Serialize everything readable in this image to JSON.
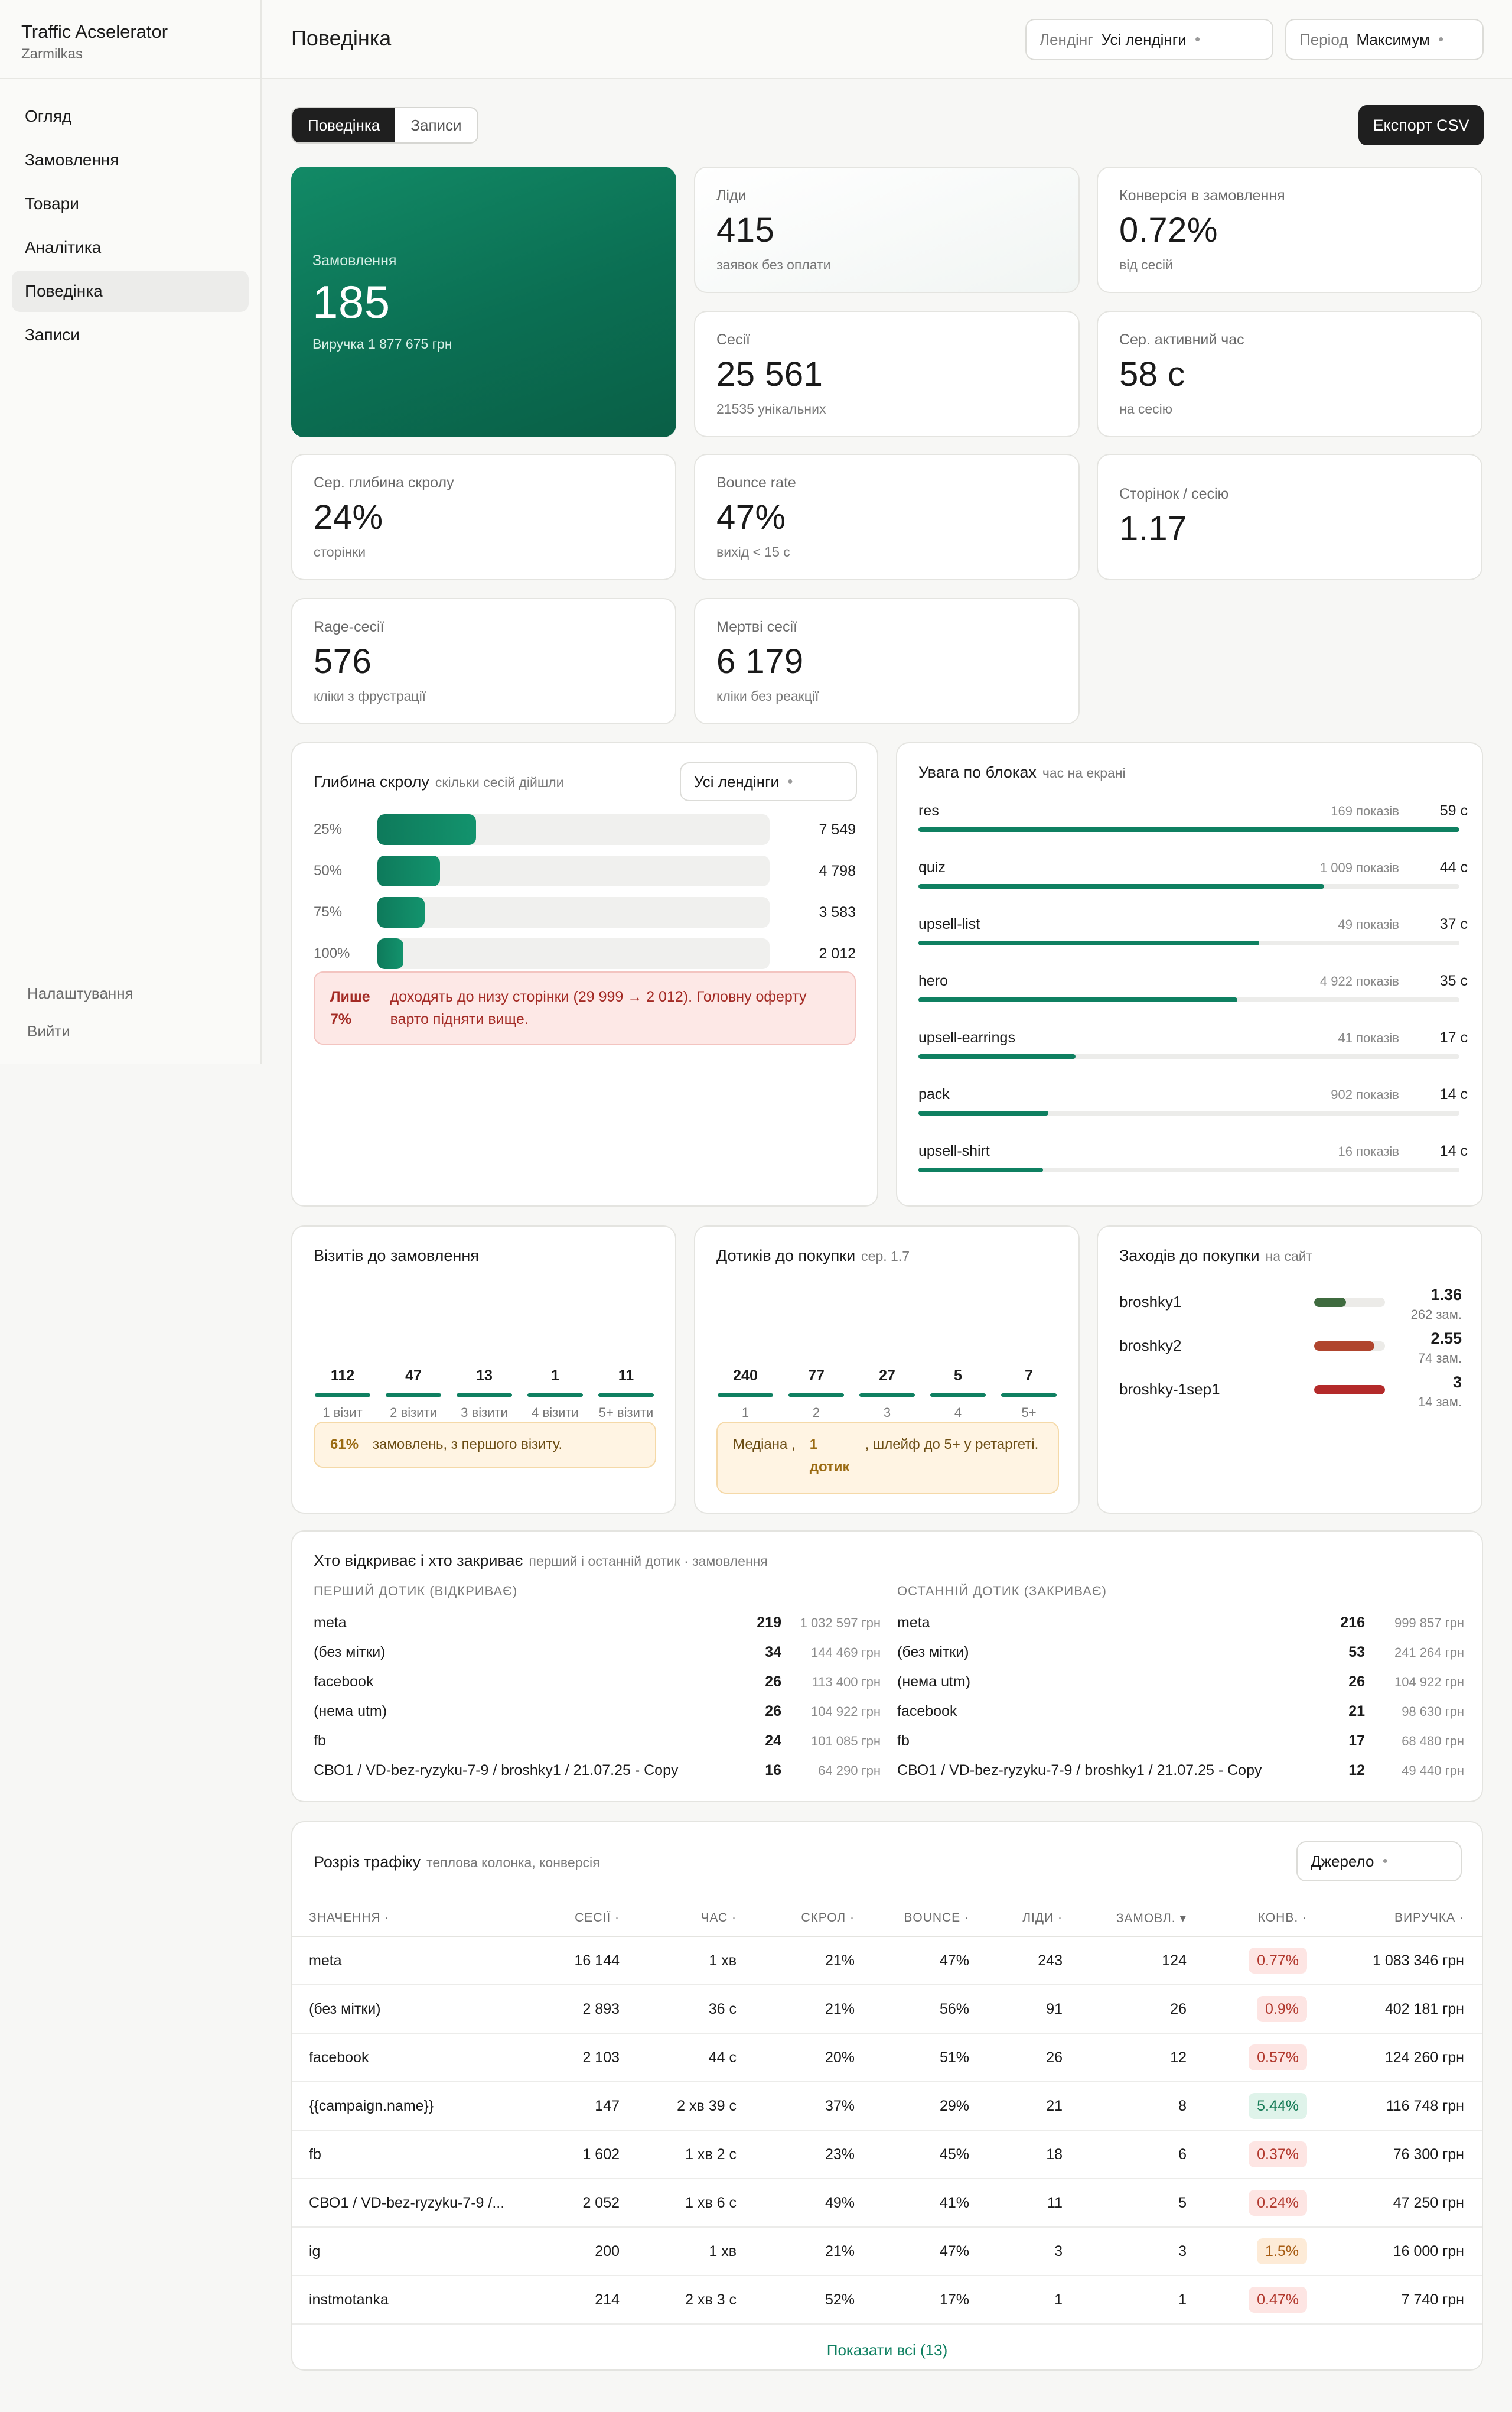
{
  "app": {
    "title": "Traffic Acselerator",
    "subtitle": "Zarmilkas"
  },
  "nav": {
    "items": [
      "Огляд",
      "Замовлення",
      "Товари",
      "Аналітика",
      "Поведінка",
      "Записи"
    ],
    "active": "Поведінка"
  },
  "sidebar_footer": {
    "settings": "Налаштування",
    "logout": "Вийти"
  },
  "header": {
    "title": "Поведінка",
    "landing_filter": {
      "label": "Лендінг",
      "value": "Усі лендінги"
    },
    "period_filter": {
      "label": "Період",
      "value": "Максимум"
    }
  },
  "tabs": [
    "Поведінка",
    "Записи"
  ],
  "export_label": "Експорт CSV",
  "kpis": {
    "orders": {
      "label": "Замовлення",
      "value": "185",
      "sub": "Виручка 1 877 675 грн"
    },
    "leads": {
      "label": "Ліди",
      "value": "415",
      "sub": "заявок без оплати"
    },
    "conversion": {
      "label": "Конверсія в замовлення",
      "value": "0.72%",
      "sub": "від сесій"
    },
    "sessions": {
      "label": "Сесії",
      "value": "25 561",
      "sub": "21535 унікальних"
    },
    "active_time": {
      "label": "Сер. активний час",
      "value": "58 с",
      "sub": "на сесію"
    },
    "scroll_depth": {
      "label": "Сер. глибина скролу",
      "value": "24%",
      "sub": "сторінки"
    },
    "bounce": {
      "label": "Bounce rate",
      "value": "47%",
      "sub": "вихід < 15 с"
    },
    "pages_per_session": {
      "label": "Сторінок / сесію",
      "value": "1.17"
    },
    "rage": {
      "label": "Rage-сесії",
      "value": "576",
      "sub": "кліки з фрустрації"
    },
    "dead": {
      "label": "Мертві сесії",
      "value": "6 179",
      "sub": "кліки без реакції"
    }
  },
  "scroll": {
    "title": "Глибина скролу",
    "muted": "скільки сесій дійшли",
    "filter": "Усі лендінги",
    "rows": [
      {
        "pct": "25%",
        "count": "7 549",
        "share": 0.252
      },
      {
        "pct": "50%",
        "count": "4 798",
        "share": 0.16
      },
      {
        "pct": "75%",
        "count": "3 583",
        "share": 0.12
      },
      {
        "pct": "100%",
        "count": "2 012",
        "share": 0.067
      }
    ],
    "alert_strong": "Лише 7%",
    "alert_text": "доходять до низу сторінки (29 999 → 2 012). Головну оферту варто підняти вище."
  },
  "attention": {
    "title": "Увага по блоках",
    "muted": "час на екрані",
    "rows": [
      {
        "name": "res",
        "shows": "169 показів",
        "secs": "59 с",
        "share": 1.0
      },
      {
        "name": "quiz",
        "shows": "1 009 показів",
        "secs": "44 с",
        "share": 0.75
      },
      {
        "name": "upsell-list",
        "shows": "49 показів",
        "secs": "37 с",
        "share": 0.63
      },
      {
        "name": "hero",
        "shows": "4 922 показів",
        "secs": "35 с",
        "share": 0.59
      },
      {
        "name": "upsell-earrings",
        "shows": "41 показів",
        "secs": "17 с",
        "share": 0.29
      },
      {
        "name": "pack",
        "shows": "902 показів",
        "secs": "14 с",
        "share": 0.24
      },
      {
        "name": "upsell-shirt",
        "shows": "16 показів",
        "secs": "14 с",
        "share": 0.23
      }
    ]
  },
  "visits_to_order": {
    "title": "Візитів до замовлення",
    "cols": [
      {
        "v": "112",
        "l": "1 візит"
      },
      {
        "v": "47",
        "l": "2 візити"
      },
      {
        "v": "13",
        "l": "3 візити"
      },
      {
        "v": "1",
        "l": "4 візити"
      },
      {
        "v": "11",
        "l": "5+ візити"
      }
    ],
    "note_strong": "61%",
    "note_text": "замовлень, з першого візиту."
  },
  "touches": {
    "title": "Дотиків до покупки",
    "muted": "сер. 1.7",
    "cols": [
      {
        "v": "240",
        "l": "1"
      },
      {
        "v": "77",
        "l": "2"
      },
      {
        "v": "27",
        "l": "3"
      },
      {
        "v": "5",
        "l": "4"
      },
      {
        "v": "7",
        "l": "5+"
      }
    ],
    "note_lead": "Медіана ,",
    "note_strong": "1 дотик",
    "note_text": ", шлейф до 5+ у ретаргеті."
  },
  "visits_purchase": {
    "title": "Заходів до покупки",
    "muted": "на сайт",
    "rows": [
      {
        "name": "broshky1",
        "value": "1.36",
        "sub": "262 зам.",
        "color": "#3f6b3f",
        "share": 0.45
      },
      {
        "name": "broshky2",
        "value": "2.55",
        "sub": "74 зам.",
        "color": "#b0452e",
        "share": 0.85
      },
      {
        "name": "broshky-1sep1",
        "value": "3",
        "sub": "14 зам.",
        "color": "#b42a2a",
        "share": 1.0
      }
    ]
  },
  "open_close": {
    "title": "Хто відкриває і хто закриває",
    "muted": "перший і останній дотик · замовлення",
    "first_head": "ПЕРШИЙ ДОТИК (ВІДКРИВАЄ)",
    "last_head": "ОСТАННІЙ ДОТИК (ЗАКРИВАЄ)",
    "first": [
      {
        "n": "meta",
        "c": "219",
        "r": "1 032 597 грн"
      },
      {
        "n": "(без мітки)",
        "c": "34",
        "r": "144 469 грн"
      },
      {
        "n": "facebook",
        "c": "26",
        "r": "113 400 грн"
      },
      {
        "n": "(нема utm)",
        "c": "26",
        "r": "104 922 грн"
      },
      {
        "n": "fb",
        "c": "24",
        "r": "101 085 грн"
      },
      {
        "n": "СВО1 / VD-bez-ryzyku-7-9 / broshky1 / 21.07.25 - Copy",
        "c": "16",
        "r": "64 290 грн"
      }
    ],
    "last": [
      {
        "n": "meta",
        "c": "216",
        "r": "999 857 грн"
      },
      {
        "n": "(без мітки)",
        "c": "53",
        "r": "241 264 грн"
      },
      {
        "n": "(нема utm)",
        "c": "26",
        "r": "104 922 грн"
      },
      {
        "n": "facebook",
        "c": "21",
        "r": "98 630 грн"
      },
      {
        "n": "fb",
        "c": "17",
        "r": "68 480 грн"
      },
      {
        "n": "СВО1 / VD-bez-ryzyku-7-9 / broshky1 / 21.07.25 - Copy",
        "c": "12",
        "r": "49 440 грн"
      }
    ]
  },
  "traffic": {
    "title": "Розріз трафіку",
    "muted": "теплова колонка, конверсія",
    "filter": "Джерело",
    "headers": [
      "ЗНАЧЕННЯ ·",
      "СЕСІЇ ·",
      "ЧАС ·",
      "СКРОЛ ·",
      "BOUNCE ·",
      "ЛІДИ ·",
      "ЗАМОВЛ. ▾",
      "КОНВ. ·",
      "ВИРУЧКА ·"
    ],
    "rows": [
      {
        "name": "meta",
        "sessions": "16 144",
        "time": "1 хв",
        "scroll": "21%",
        "bounce": "47%",
        "leads": "243",
        "orders": "124",
        "conv": "0.77%",
        "conv_level": "bad",
        "revenue": "1 083 346 грн"
      },
      {
        "name": "(без мітки)",
        "sessions": "2 893",
        "time": "36 с",
        "scroll": "21%",
        "bounce": "56%",
        "leads": "91",
        "orders": "26",
        "conv": "0.9%",
        "conv_level": "bad",
        "revenue": "402 181 грн"
      },
      {
        "name": "facebook",
        "sessions": "2 103",
        "time": "44 с",
        "scroll": "20%",
        "bounce": "51%",
        "leads": "26",
        "orders": "12",
        "conv": "0.57%",
        "conv_level": "bad",
        "revenue": "124 260 грн"
      },
      {
        "name": "{{campaign.name}}",
        "sessions": "147",
        "time": "2 хв 39 с",
        "scroll": "37%",
        "bounce": "29%",
        "leads": "21",
        "orders": "8",
        "conv": "5.44%",
        "conv_level": "good",
        "revenue": "116 748 грн"
      },
      {
        "name": "fb",
        "sessions": "1 602",
        "time": "1 хв 2 с",
        "scroll": "23%",
        "bounce": "45%",
        "leads": "18",
        "orders": "6",
        "conv": "0.37%",
        "conv_level": "bad",
        "revenue": "76 300 грн"
      },
      {
        "name": "СВО1 / VD-bez-ryzyku-7-9 /...",
        "sessions": "2 052",
        "time": "1 хв 6 с",
        "scroll": "49%",
        "bounce": "41%",
        "leads": "11",
        "orders": "5",
        "conv": "0.24%",
        "conv_level": "bad",
        "revenue": "47 250 грн"
      },
      {
        "name": "ig",
        "sessions": "200",
        "time": "1 хв",
        "scroll": "21%",
        "bounce": "47%",
        "leads": "3",
        "orders": "3",
        "conv": "1.5%",
        "conv_level": "mid",
        "revenue": "16 000 грн"
      },
      {
        "name": "instmotanka",
        "sessions": "214",
        "time": "2 хв 3 с",
        "scroll": "52%",
        "bounce": "17%",
        "leads": "1",
        "orders": "1",
        "conv": "0.47%",
        "conv_level": "bad",
        "revenue": "7 740 грн"
      }
    ],
    "show_all": "Показати всі (13)"
  },
  "colors": {
    "accent": "#0f8061",
    "dark": "#1f1f1f",
    "alert_bg": "#fde8e6",
    "note_bg": "#fff4e3"
  }
}
